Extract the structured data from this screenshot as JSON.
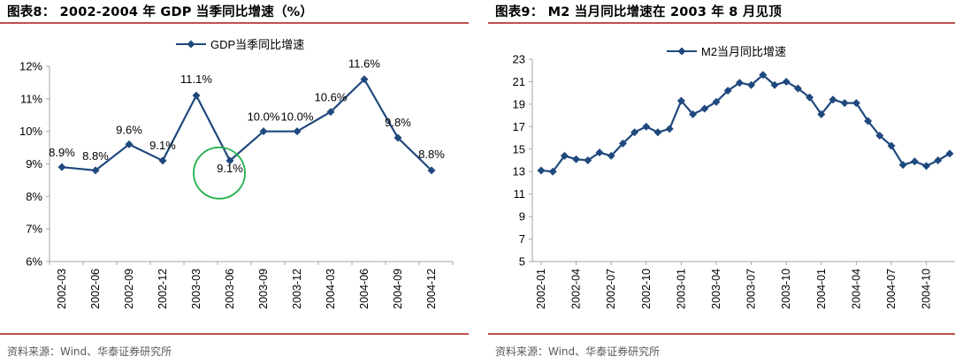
{
  "left_panel": {
    "title": "图表8： 2002-2004 年 GDP 当季同比增速（%）",
    "source": "资料来源：Wind、华泰证券研究所"
  },
  "right_panel": {
    "title": "图表9： M2 当月同比增速在 2003 年 8 月见顶",
    "source": "资料来源：Wind、华泰证券研究所"
  },
  "colors": {
    "series": "#1f497d",
    "accent_rule": "#c0504d",
    "highlight_circle": "#22b14c",
    "axis": "#a6a6a6"
  },
  "chart_data": [
    {
      "type": "line",
      "title": "",
      "legend": {
        "label": "GDP当季同比增速",
        "position": "top"
      },
      "categories": [
        "2002-03",
        "2002-06",
        "2002-09",
        "2002-12",
        "2003-03",
        "2003-06",
        "2003-09",
        "2003-12",
        "2004-03",
        "2004-06",
        "2004-09",
        "2004-12"
      ],
      "series": [
        {
          "name": "GDP当季同比增速",
          "values": [
            8.9,
            8.8,
            9.6,
            9.1,
            11.1,
            9.1,
            10.0,
            10.0,
            10.6,
            11.6,
            9.8,
            8.8
          ]
        }
      ],
      "data_labels": [
        "8.9%",
        "8.8%",
        "9.6%",
        "9.1%",
        "11.1%",
        "9.1%",
        "10.0%",
        "10.0%",
        "10.6%",
        "11.6%",
        "9.8%",
        "8.8%"
      ],
      "y_ticks": [
        "6%",
        "7%",
        "8%",
        "9%",
        "10%",
        "11%",
        "12%"
      ],
      "ylim": [
        6,
        12
      ],
      "highlight": {
        "category": "2003-06",
        "shape": "circle"
      },
      "grid": false,
      "marker": "diamond"
    },
    {
      "type": "line",
      "title": "",
      "legend": {
        "label": "M2当月同比增速",
        "position": "top"
      },
      "x_tick_labels": [
        "2002-01",
        "2002-04",
        "2002-07",
        "2002-10",
        "2003-01",
        "2003-04",
        "2003-07",
        "2003-10",
        "2004-01",
        "2004-04",
        "2004-07",
        "2004-10"
      ],
      "series": [
        {
          "name": "M2当月同比增速",
          "dates": [
            "2002-01",
            "2002-02",
            "2002-03",
            "2002-04",
            "2002-05",
            "2002-06",
            "2002-07",
            "2002-08",
            "2002-09",
            "2002-10",
            "2002-11",
            "2002-12",
            "2003-01",
            "2003-02",
            "2003-03",
            "2003-04",
            "2003-05",
            "2003-06",
            "2003-07",
            "2003-08",
            "2003-09",
            "2003-10",
            "2003-11",
            "2003-12",
            "2004-01",
            "2004-02",
            "2004-03",
            "2004-04",
            "2004-05",
            "2004-06",
            "2004-07",
            "2004-08",
            "2004-09",
            "2004-10",
            "2004-11",
            "2004-12"
          ],
          "values": [
            13.1,
            13.0,
            14.4,
            14.1,
            14.0,
            14.7,
            14.4,
            15.5,
            16.5,
            17.0,
            16.5,
            16.8,
            19.3,
            18.1,
            18.6,
            19.2,
            20.2,
            20.9,
            20.7,
            21.6,
            20.7,
            21.0,
            20.4,
            19.6,
            18.1,
            19.4,
            19.1,
            19.1,
            17.5,
            16.2,
            15.3,
            13.6,
            13.9,
            13.5,
            14.0,
            14.6
          ]
        }
      ],
      "y_ticks": [
        "5",
        "7",
        "9",
        "11",
        "13",
        "15",
        "17",
        "19",
        "21",
        "23"
      ],
      "ylim": [
        5,
        23
      ],
      "grid": false,
      "marker": "diamond"
    }
  ]
}
